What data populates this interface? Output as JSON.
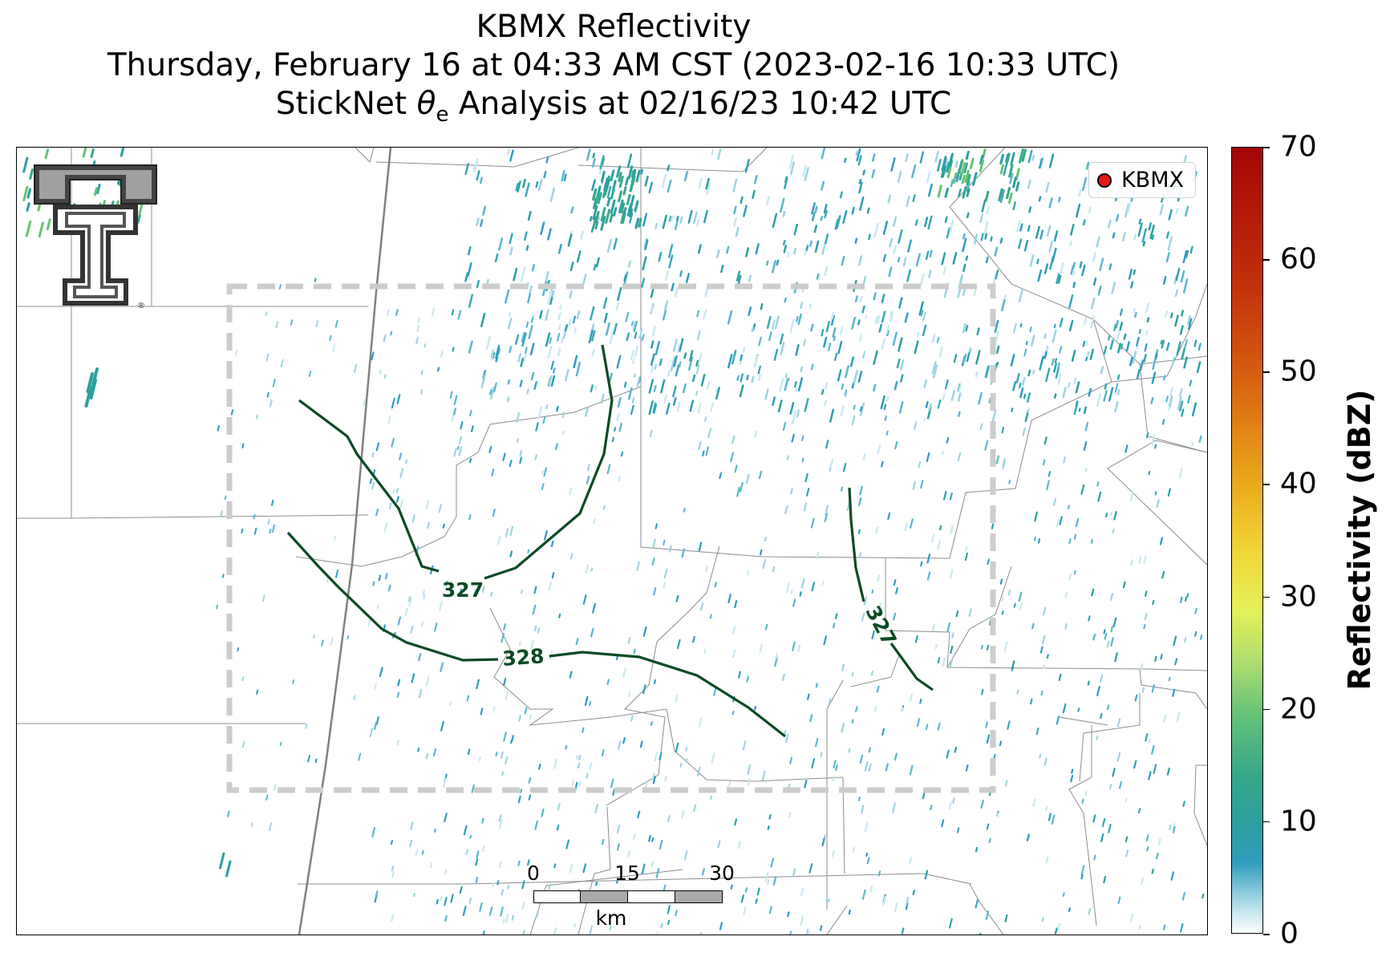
{
  "title": {
    "line1": "KBMX Reflectivity",
    "line2": "Thursday, February 16 at 04:33 AM CST (2023-02-16 10:33 UTC)",
    "line3_prefix": "StickNet ",
    "line3_theta": "θ",
    "line3_sub": "e",
    "line3_suffix": " Analysis at 02/16/23 10:42 UTC"
  },
  "legend": {
    "label": "KBMX",
    "marker_color": "#e8141c"
  },
  "contours": [
    {
      "label": "327",
      "color": "#0b4a24"
    },
    {
      "label": "328",
      "color": "#0b4a24"
    }
  ],
  "scalebar": {
    "ticks": [
      "0",
      "15",
      "30"
    ],
    "unit": "km"
  },
  "colorbar": {
    "title": "Reflectivity (dBZ)",
    "ticks": [
      "0",
      "10",
      "20",
      "30",
      "40",
      "50",
      "60",
      "70"
    ],
    "min": 0,
    "max": 70
  },
  "logo": {
    "name": "texas-tech-double-t-logo",
    "registered_mark": "®"
  }
}
